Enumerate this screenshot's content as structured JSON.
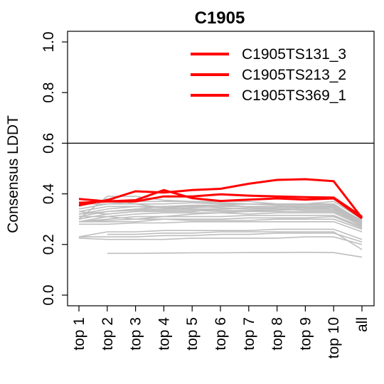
{
  "chart_data": {
    "type": "line",
    "title": "C1905",
    "ylabel": "Consensus LDDT",
    "xlabel": "",
    "ylim": [
      0.0,
      1.0
    ],
    "yticks": [
      "0.0",
      "0.2",
      "0.4",
      "0.6",
      "0.8",
      "1.0"
    ],
    "reference_line_y": 0.6,
    "categories": [
      "top 1",
      "top 2",
      "top 3",
      "top 4",
      "top 5",
      "top 6",
      "top 7",
      "top 8",
      "top 9",
      "top 10",
      "all"
    ],
    "highlight_color": "#ff0000",
    "background_color": "#bebebe",
    "legend_position": "top-right",
    "highlighted_series": [
      {
        "name": "C1905TS131_3",
        "values": [
          0.355,
          0.375,
          0.41,
          0.405,
          0.415,
          0.42,
          0.44,
          0.455,
          0.458,
          0.45,
          0.305
        ]
      },
      {
        "name": "C1905TS213_2",
        "values": [
          0.38,
          0.37,
          0.37,
          0.39,
          0.39,
          0.398,
          0.393,
          0.39,
          0.387,
          0.385,
          0.31
        ]
      },
      {
        "name": "C1905TS369_1",
        "values": [
          0.365,
          0.37,
          0.375,
          0.415,
          0.383,
          0.372,
          0.377,
          0.382,
          0.377,
          0.382,
          0.303
        ]
      }
    ],
    "background_series": [
      {
        "values": [
          0.36,
          0.36,
          0.37,
          0.37,
          0.37,
          0.37,
          0.37,
          0.36,
          0.36,
          0.37,
          0.3
        ]
      },
      {
        "values": [
          0.34,
          0.36,
          0.36,
          0.36,
          0.365,
          0.36,
          0.36,
          0.36,
          0.355,
          0.36,
          0.29
        ]
      },
      {
        "values": [
          0.33,
          0.35,
          0.35,
          0.35,
          0.35,
          0.355,
          0.35,
          0.35,
          0.35,
          0.35,
          0.29
        ]
      },
      {
        "values": [
          0.32,
          0.34,
          0.35,
          0.345,
          0.34,
          0.34,
          0.345,
          0.34,
          0.345,
          0.345,
          0.285
        ]
      },
      {
        "values": [
          0.31,
          0.33,
          0.34,
          0.34,
          0.34,
          0.335,
          0.335,
          0.335,
          0.34,
          0.34,
          0.28
        ]
      },
      {
        "values": [
          0.3,
          0.32,
          0.33,
          0.335,
          0.335,
          0.33,
          0.33,
          0.33,
          0.33,
          0.33,
          0.28
        ]
      },
      {
        "values": [
          0.29,
          0.31,
          0.32,
          0.325,
          0.325,
          0.325,
          0.32,
          0.325,
          0.325,
          0.325,
          0.275
        ]
      },
      {
        "values": [
          0.29,
          0.3,
          0.31,
          0.31,
          0.31,
          0.31,
          0.315,
          0.315,
          0.315,
          0.315,
          0.27
        ]
      },
      {
        "values": [
          0.3,
          0.39,
          0.39,
          0.375,
          0.37,
          0.365,
          0.36,
          0.355,
          0.35,
          0.355,
          0.295
        ]
      },
      {
        "values": [
          0.35,
          0.38,
          0.36,
          0.345,
          0.35,
          0.345,
          0.34,
          0.34,
          0.335,
          0.335,
          0.285
        ]
      },
      {
        "values": [
          0.33,
          0.32,
          0.33,
          0.33,
          0.33,
          0.34,
          0.345,
          0.345,
          0.35,
          0.35,
          0.29
        ]
      },
      {
        "values": [
          0.29,
          0.29,
          0.29,
          0.3,
          0.3,
          0.3,
          0.305,
          0.305,
          0.305,
          0.31,
          0.265
        ]
      },
      {
        "values": [
          0.31,
          0.31,
          0.3,
          0.3,
          0.295,
          0.295,
          0.295,
          0.3,
          0.3,
          0.3,
          0.26
        ]
      },
      {
        "values": [
          0.32,
          0.33,
          0.34,
          0.35,
          0.355,
          0.355,
          0.36,
          0.36,
          0.36,
          0.36,
          0.29
        ]
      },
      {
        "values": [
          0.28,
          0.28,
          0.285,
          0.285,
          0.29,
          0.29,
          0.29,
          0.29,
          0.29,
          0.29,
          0.25
        ]
      },
      {
        "values": [
          0.23,
          0.25,
          0.25,
          0.255,
          0.255,
          0.255,
          0.255,
          0.26,
          0.26,
          0.26,
          0.22
        ]
      },
      {
        "values": [
          0.23,
          0.23,
          0.23,
          0.235,
          0.235,
          0.24,
          0.24,
          0.245,
          0.245,
          0.245,
          0.21
        ]
      },
      {
        "values": [
          0.225,
          0.22,
          0.22,
          0.22,
          0.225,
          0.225,
          0.225,
          0.225,
          0.23,
          0.23,
          0.2
        ]
      },
      {
        "values": [
          null,
          0.24,
          0.24,
          0.245,
          0.245,
          0.25,
          0.25,
          0.25,
          0.25,
          0.25,
          0.18
        ]
      },
      {
        "values": [
          null,
          0.165,
          0.165,
          0.166,
          0.167,
          0.167,
          0.168,
          0.168,
          0.169,
          0.168,
          0.15
        ]
      },
      {
        "values": [
          0.32,
          0.33,
          0.335,
          0.34,
          0.345,
          0.35,
          0.35,
          0.35,
          0.345,
          0.345,
          0.28
        ]
      },
      {
        "values": [
          0.29,
          0.295,
          0.3,
          0.31,
          0.32,
          0.325,
          0.33,
          0.335,
          0.34,
          0.345,
          0.27
        ]
      }
    ]
  }
}
